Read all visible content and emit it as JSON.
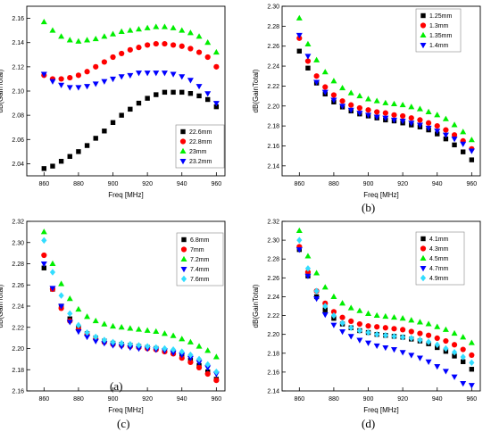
{
  "chart_data": [
    {
      "type": "scatter",
      "panel_label": "(a)",
      "xlabel": "Freq [MHz]",
      "ylabel": "dB(GainTotal)",
      "xlim": [
        850,
        965
      ],
      "ylim": [
        2.03,
        2.17
      ],
      "xticks": [
        "860",
        "880",
        "900",
        "920",
        "940",
        "960"
      ],
      "yticks": [
        "2.04",
        "2.06",
        "2.08",
        "2.10",
        "2.12",
        "2.14",
        "2.16"
      ],
      "grid": false,
      "legend_position": "bottom-right",
      "x": [
        860,
        865,
        870,
        875,
        880,
        885,
        890,
        895,
        900,
        905,
        910,
        915,
        920,
        925,
        930,
        935,
        940,
        945,
        950,
        955,
        960
      ],
      "series": [
        {
          "name": "22.6mm",
          "color": "#000000",
          "marker": "square",
          "values": [
            2.036,
            2.038,
            2.042,
            2.046,
            2.05,
            2.055,
            2.061,
            2.067,
            2.074,
            2.08,
            2.085,
            2.09,
            2.094,
            2.097,
            2.099,
            2.099,
            2.099,
            2.098,
            2.096,
            2.093,
            2.087
          ]
        },
        {
          "name": "22.8mm",
          "color": "#ff0000",
          "marker": "circle",
          "values": [
            2.113,
            2.11,
            2.11,
            2.111,
            2.113,
            2.116,
            2.12,
            2.124,
            2.128,
            2.131,
            2.134,
            2.136,
            2.138,
            2.139,
            2.139,
            2.138,
            2.137,
            2.135,
            2.132,
            2.128,
            2.12
          ]
        },
        {
          "name": "23mm",
          "color": "#00ee00",
          "marker": "triangle-up",
          "values": [
            2.157,
            2.15,
            2.145,
            2.142,
            2.141,
            2.142,
            2.143,
            2.145,
            2.147,
            2.149,
            2.15,
            2.151,
            2.152,
            2.153,
            2.153,
            2.152,
            2.15,
            2.148,
            2.145,
            2.14,
            2.132
          ]
        },
        {
          "name": "23.2mm",
          "color": "#0000ff",
          "marker": "triangle-down",
          "values": [
            2.114,
            2.108,
            2.105,
            2.103,
            2.103,
            2.104,
            2.106,
            2.108,
            2.11,
            2.112,
            2.113,
            2.115,
            2.115,
            2.115,
            2.115,
            2.114,
            2.112,
            2.109,
            2.104,
            2.098,
            2.09
          ]
        }
      ]
    },
    {
      "type": "scatter",
      "panel_label": "(b)",
      "xlabel": "Freq [MHz]",
      "ylabel": "dB(GainTotal)",
      "xlim": [
        850,
        965
      ],
      "ylim": [
        2.13,
        2.3
      ],
      "xticks": [
        "860",
        "880",
        "900",
        "920",
        "940",
        "960"
      ],
      "yticks": [
        "2.14",
        "2.16",
        "2.18",
        "2.20",
        "2.22",
        "2.24",
        "2.26",
        "2.28",
        "2.30"
      ],
      "grid": false,
      "legend_position": "top-right",
      "x": [
        860,
        865,
        870,
        875,
        880,
        885,
        890,
        895,
        900,
        905,
        910,
        915,
        920,
        925,
        930,
        935,
        940,
        945,
        950,
        955,
        960
      ],
      "series": [
        {
          "name": "1.25mm",
          "color": "#000000",
          "marker": "square",
          "values": [
            2.255,
            2.238,
            2.223,
            2.212,
            2.204,
            2.199,
            2.195,
            2.192,
            2.19,
            2.188,
            2.186,
            2.185,
            2.183,
            2.181,
            2.179,
            2.176,
            2.172,
            2.167,
            2.161,
            2.154,
            2.146
          ]
        },
        {
          "name": "1.3mm",
          "color": "#ff0000",
          "marker": "circle",
          "values": [
            2.268,
            2.245,
            2.23,
            2.219,
            2.211,
            2.205,
            2.201,
            2.198,
            2.196,
            2.194,
            2.193,
            2.191,
            2.19,
            2.188,
            2.186,
            2.183,
            2.18,
            2.176,
            2.171,
            2.165,
            2.157
          ]
        },
        {
          "name": "1.35mm",
          "color": "#00ee00",
          "marker": "triangle-up",
          "values": [
            2.288,
            2.262,
            2.246,
            2.234,
            2.225,
            2.218,
            2.213,
            2.21,
            2.207,
            2.205,
            2.203,
            2.202,
            2.201,
            2.199,
            2.197,
            2.194,
            2.191,
            2.187,
            2.181,
            2.174,
            2.166
          ]
        },
        {
          "name": "1.4mm",
          "color": "#0000ff",
          "marker": "triangle-down",
          "values": [
            2.271,
            2.25,
            2.224,
            2.214,
            2.206,
            2.2,
            2.196,
            2.193,
            2.191,
            2.189,
            2.188,
            2.186,
            2.185,
            2.183,
            2.181,
            2.178,
            2.175,
            2.171,
            2.167,
            2.162,
            2.155
          ]
        }
      ]
    },
    {
      "type": "scatter",
      "panel_label": "(c)",
      "xlabel": "Freq [MHz]",
      "ylabel": "dB(GainTotal)",
      "xlim": [
        850,
        965
      ],
      "ylim": [
        2.16,
        2.32
      ],
      "xticks": [
        "860",
        "880",
        "900",
        "920",
        "940",
        "960"
      ],
      "yticks": [
        "2.16",
        "2.18",
        "2.20",
        "2.22",
        "2.24",
        "2.26",
        "2.28",
        "2.30",
        "2.32"
      ],
      "grid": false,
      "legend_position": "top-right",
      "x": [
        860,
        865,
        870,
        875,
        880,
        885,
        890,
        895,
        900,
        905,
        910,
        915,
        920,
        925,
        930,
        935,
        940,
        945,
        950,
        955,
        960
      ],
      "series": [
        {
          "name": "6.8mm",
          "color": "#000000",
          "marker": "square",
          "values": [
            2.276,
            2.256,
            2.24,
            2.228,
            2.22,
            2.214,
            2.21,
            2.207,
            2.205,
            2.204,
            2.203,
            2.202,
            2.201,
            2.2,
            2.198,
            2.196,
            2.193,
            2.189,
            2.184,
            2.178,
            2.171
          ]
        },
        {
          "name": "7mm",
          "color": "#ff0000",
          "marker": "circle",
          "values": [
            2.288,
            2.256,
            2.238,
            2.226,
            2.218,
            2.213,
            2.209,
            2.206,
            2.204,
            2.203,
            2.202,
            2.201,
            2.2,
            2.199,
            2.197,
            2.195,
            2.191,
            2.187,
            2.182,
            2.176,
            2.17
          ]
        },
        {
          "name": "7.2mm",
          "color": "#00ee00",
          "marker": "triangle-up",
          "values": [
            2.31,
            2.28,
            2.261,
            2.247,
            2.237,
            2.23,
            2.226,
            2.223,
            2.221,
            2.22,
            2.219,
            2.218,
            2.217,
            2.216,
            2.214,
            2.212,
            2.209,
            2.206,
            2.202,
            2.198,
            2.192
          ]
        },
        {
          "name": "7.4mm",
          "color": "#0000ff",
          "marker": "triangle-down",
          "values": [
            2.28,
            2.257,
            2.24,
            2.225,
            2.216,
            2.211,
            2.207,
            2.205,
            2.203,
            2.202,
            2.201,
            2.2,
            2.2,
            2.199,
            2.198,
            2.196,
            2.194,
            2.191,
            2.187,
            2.182,
            2.176
          ]
        },
        {
          "name": "7.6mm",
          "color": "#33ddff",
          "marker": "diamond",
          "values": [
            2.302,
            2.272,
            2.25,
            2.233,
            2.222,
            2.215,
            2.211,
            2.208,
            2.206,
            2.205,
            2.204,
            2.203,
            2.202,
            2.201,
            2.2,
            2.199,
            2.197,
            2.194,
            2.19,
            2.185,
            2.178
          ]
        }
      ]
    },
    {
      "type": "scatter",
      "panel_label": "(d)",
      "xlabel": "Freq [MHz]",
      "ylabel": "dB(GainTotal)",
      "xlim": [
        850,
        965
      ],
      "ylim": [
        2.14,
        2.32
      ],
      "xticks": [
        "860",
        "880",
        "900",
        "920",
        "940",
        "960"
      ],
      "yticks": [
        "2.14",
        "2.16",
        "2.18",
        "2.20",
        "2.22",
        "2.24",
        "2.26",
        "2.28",
        "2.30",
        "2.32"
      ],
      "grid": false,
      "legend_position": "top-right",
      "x": [
        860,
        865,
        870,
        875,
        880,
        885,
        890,
        895,
        900,
        905,
        910,
        915,
        920,
        925,
        930,
        935,
        940,
        945,
        950,
        955,
        960
      ],
      "series": [
        {
          "name": "4.1mm",
          "color": "#000000",
          "marker": "square",
          "values": [
            2.29,
            2.262,
            2.24,
            2.226,
            2.217,
            2.211,
            2.207,
            2.204,
            2.202,
            2.2,
            2.199,
            2.198,
            2.197,
            2.195,
            2.193,
            2.19,
            2.186,
            2.182,
            2.177,
            2.171,
            2.163
          ]
        },
        {
          "name": "4.3mm",
          "color": "#ff0000",
          "marker": "circle",
          "values": [
            2.293,
            2.266,
            2.246,
            2.233,
            2.224,
            2.218,
            2.214,
            2.211,
            2.209,
            2.208,
            2.207,
            2.206,
            2.205,
            2.203,
            2.201,
            2.199,
            2.196,
            2.193,
            2.189,
            2.184,
            2.178
          ]
        },
        {
          "name": "4.5mm",
          "color": "#00ee00",
          "marker": "triangle-up",
          "values": [
            2.31,
            2.283,
            2.265,
            2.25,
            2.24,
            2.233,
            2.228,
            2.225,
            2.222,
            2.22,
            2.219,
            2.218,
            2.217,
            2.215,
            2.213,
            2.211,
            2.208,
            2.205,
            2.201,
            2.197,
            2.191
          ]
        },
        {
          "name": "4.7mm",
          "color": "#0000ff",
          "marker": "triangle-down",
          "values": [
            2.29,
            2.262,
            2.238,
            2.221,
            2.21,
            2.203,
            2.198,
            2.194,
            2.191,
            2.188,
            2.186,
            2.184,
            2.181,
            2.178,
            2.175,
            2.171,
            2.166,
            2.161,
            2.155,
            2.148,
            2.146
          ]
        },
        {
          "name": "4.9mm",
          "color": "#33ddff",
          "marker": "diamond",
          "values": [
            2.3,
            2.27,
            2.246,
            2.23,
            2.22,
            2.212,
            2.207,
            2.204,
            2.202,
            2.2,
            2.199,
            2.198,
            2.197,
            2.196,
            2.194,
            2.192,
            2.189,
            2.185,
            2.181,
            2.176,
            2.17
          ]
        }
      ]
    }
  ]
}
